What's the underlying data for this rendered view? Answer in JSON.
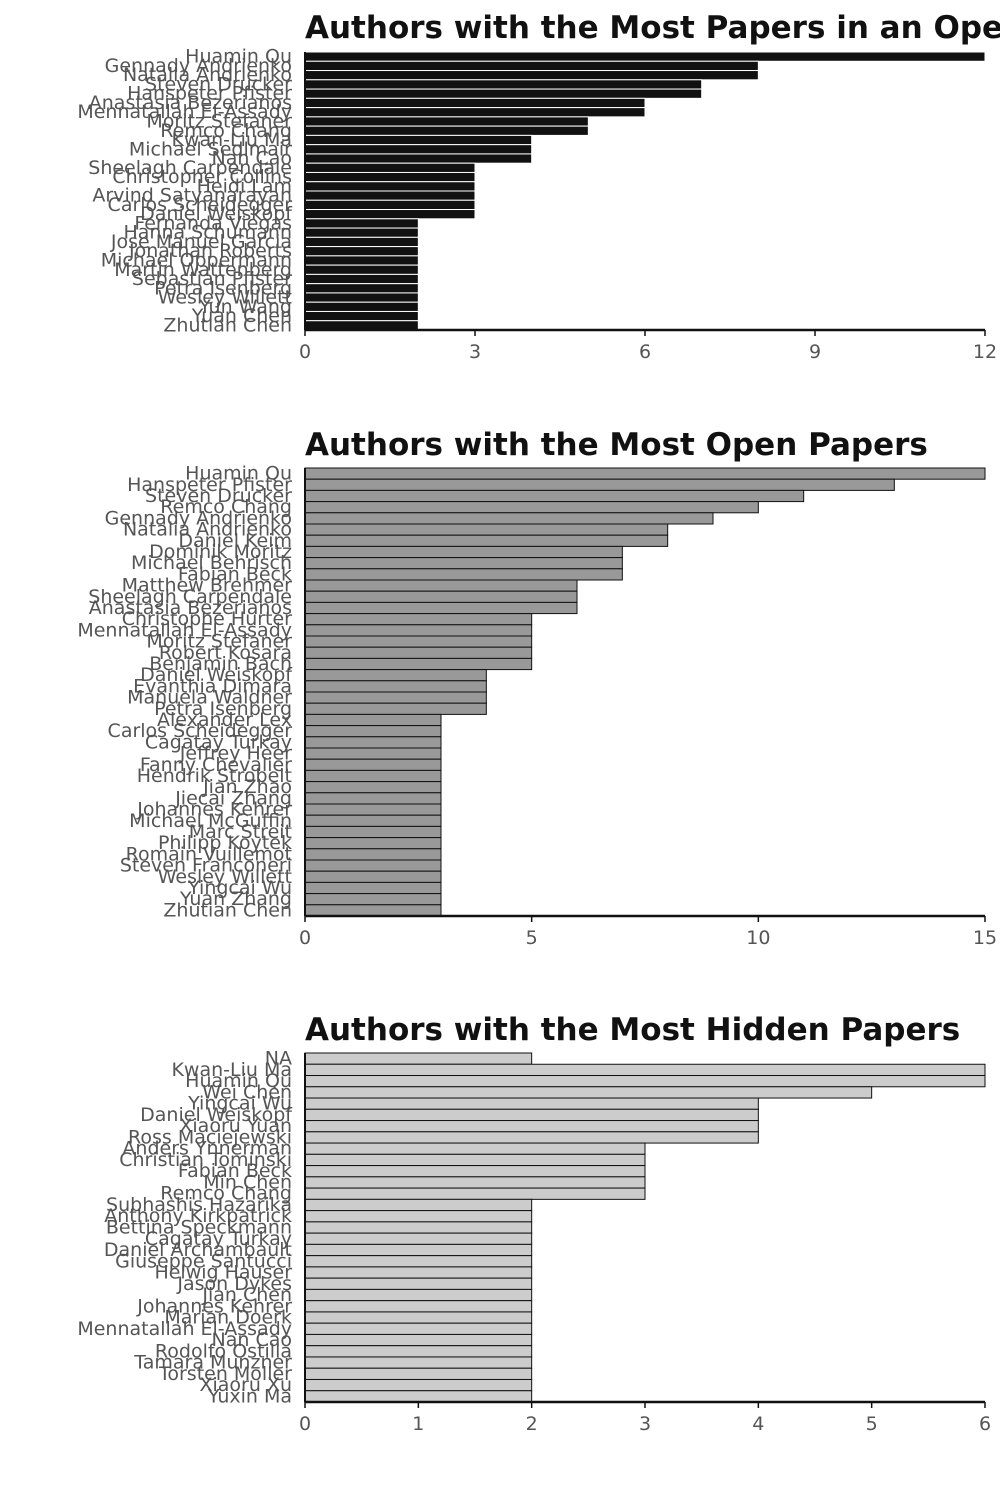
{
  "chart_data": [
    {
      "type": "bar",
      "orientation": "horizontal",
      "title": "Authors with the Most Papers in an Open Acc",
      "xlabel": "",
      "ylabel": "",
      "xlim": [
        0,
        12
      ],
      "xticks": [
        "0",
        "3",
        "6",
        "9",
        "12"
      ],
      "grid": false,
      "legend": "none",
      "colors": {
        "bar_fill": "#111111",
        "bar_stroke": "#ffffff"
      },
      "categories": [
        "Huamin Qu",
        "Gennady Andrienko",
        "Natalia Andrienko",
        "Steven Drucker",
        "Hanspeter Pfister",
        "Anastasia Bezerianos",
        "Mennatallah El-Assady",
        "Moritz Stefaner",
        "Remco Chang",
        "Kwan-Liu Ma",
        "Michael Sedlmair",
        "Nan Cao",
        "Sheelagh Carpendale",
        "Christopher Collins",
        "Heidi Lam",
        "Arvind Satyanarayan",
        "Carlos Scheidegger",
        "Daniel Weiskopf",
        "Fernanda Viegas",
        "Hanna Schumann",
        "Jose Manuel Garcia",
        "Jonathan Roberts",
        "Michael Oppermann",
        "Martin Wattenberg",
        "Sebastian Pfister",
        "Petra Isenberg",
        "Wesley Willett",
        "Yun Wang",
        "Yuan Chen",
        "Zhutian Chen"
      ],
      "values": [
        12,
        8,
        8,
        7,
        7,
        6,
        6,
        5,
        5,
        4,
        4,
        4,
        3,
        3,
        3,
        3,
        3,
        3,
        2,
        2,
        2,
        2,
        2,
        2,
        2,
        2,
        2,
        2,
        2,
        2
      ]
    },
    {
      "type": "bar",
      "orientation": "horizontal",
      "title": "Authors with the Most Open Papers",
      "xlabel": "",
      "ylabel": "",
      "xlim": [
        0,
        15
      ],
      "xticks": [
        "0",
        "5",
        "10",
        "15"
      ],
      "grid": false,
      "legend": "none",
      "colors": {
        "bar_fill": "#999999",
        "bar_stroke": "#111111"
      },
      "categories": [
        "Huamin Qu",
        "Hanspeter Pfister",
        "Steven Drucker",
        "Remco Chang",
        "Gennady Andrienko",
        "Natalia Andrienko",
        "Daniel Keim",
        "Dominik Moritz",
        "Michael Behrisch",
        "Fabian Beck",
        "Matthew Brehmer",
        "Sheelagh Carpendale",
        "Anastasia Bezerianos",
        "Christophe Hurter",
        "Mennatallah El-Assady",
        "Moritz Stefaner",
        "Robert Kosara",
        "Benjamin Bach",
        "Daniel Weiskopf",
        "Evanthia Dimara",
        "Manuela Waldner",
        "Petra Isenberg",
        "Alexander Lex",
        "Carlos Scheidegger",
        "Cagatay Turkay",
        "Jeffrey Heer",
        "Fanny Chevalier",
        "Hendrik Strobelt",
        "Jian Zhao",
        "Jiecai Zhang",
        "Johannes Kehrer",
        "Michael McGuffin",
        "Marc Streit",
        "Philipp Koytek",
        "Romain Vuillemot",
        "Steven Franconeri",
        "Wesley Willett",
        "Yingcai Wu",
        "Yuan Zhang",
        "Zhutian Chen"
      ],
      "values": [
        15,
        13,
        11,
        10,
        9,
        8,
        8,
        7,
        7,
        7,
        6,
        6,
        6,
        5,
        5,
        5,
        5,
        5,
        4,
        4,
        4,
        4,
        3,
        3,
        3,
        3,
        3,
        3,
        3,
        3,
        3,
        3,
        3,
        3,
        3,
        3,
        3,
        3,
        3,
        3
      ]
    },
    {
      "type": "bar",
      "orientation": "horizontal",
      "title": "Authors with the Most Hidden Papers",
      "xlabel": "",
      "ylabel": "",
      "xlim": [
        0,
        6
      ],
      "xticks": [
        "0",
        "1",
        "2",
        "3",
        "4",
        "5",
        "6"
      ],
      "grid": false,
      "legend": "none",
      "colors": {
        "bar_fill": "#cccccc",
        "bar_stroke": "#111111"
      },
      "categories": [
        "NA",
        "Kwan-Liu Ma",
        "Huamin Qu",
        "Wei Chen",
        "Yingcai Wu",
        "Daniel Weiskopf",
        "Xiaoru Yuan",
        "Ross Maciejewski",
        "Anders Ynnerman",
        "Christian Tominski",
        "Fabian Beck",
        "Min Chen",
        "Remco Chang",
        "Subhashis Hazarika",
        "Anthony Kirkpatrick",
        "Bettina Speckmann",
        "Cagatay Turkay",
        "Daniel Archambault",
        "Giuseppe Santucci",
        "Helwig Hauser",
        "Jason Dykes",
        "Jian Chen",
        "Johannes Kehrer",
        "Marian Doerk",
        "Mennatallah El-Assady",
        "Nan Cao",
        "Rodolfo Ostilla",
        "Tamara Munzner",
        "Torsten Moller",
        "Xiaoru Xu",
        "Yuxin Ma"
      ],
      "values": [
        2,
        6,
        6,
        5,
        4,
        4,
        4,
        4,
        3,
        3,
        3,
        3,
        3,
        2,
        2,
        2,
        2,
        2,
        2,
        2,
        2,
        2,
        2,
        2,
        2,
        2,
        2,
        2,
        2,
        2,
        2
      ]
    }
  ]
}
